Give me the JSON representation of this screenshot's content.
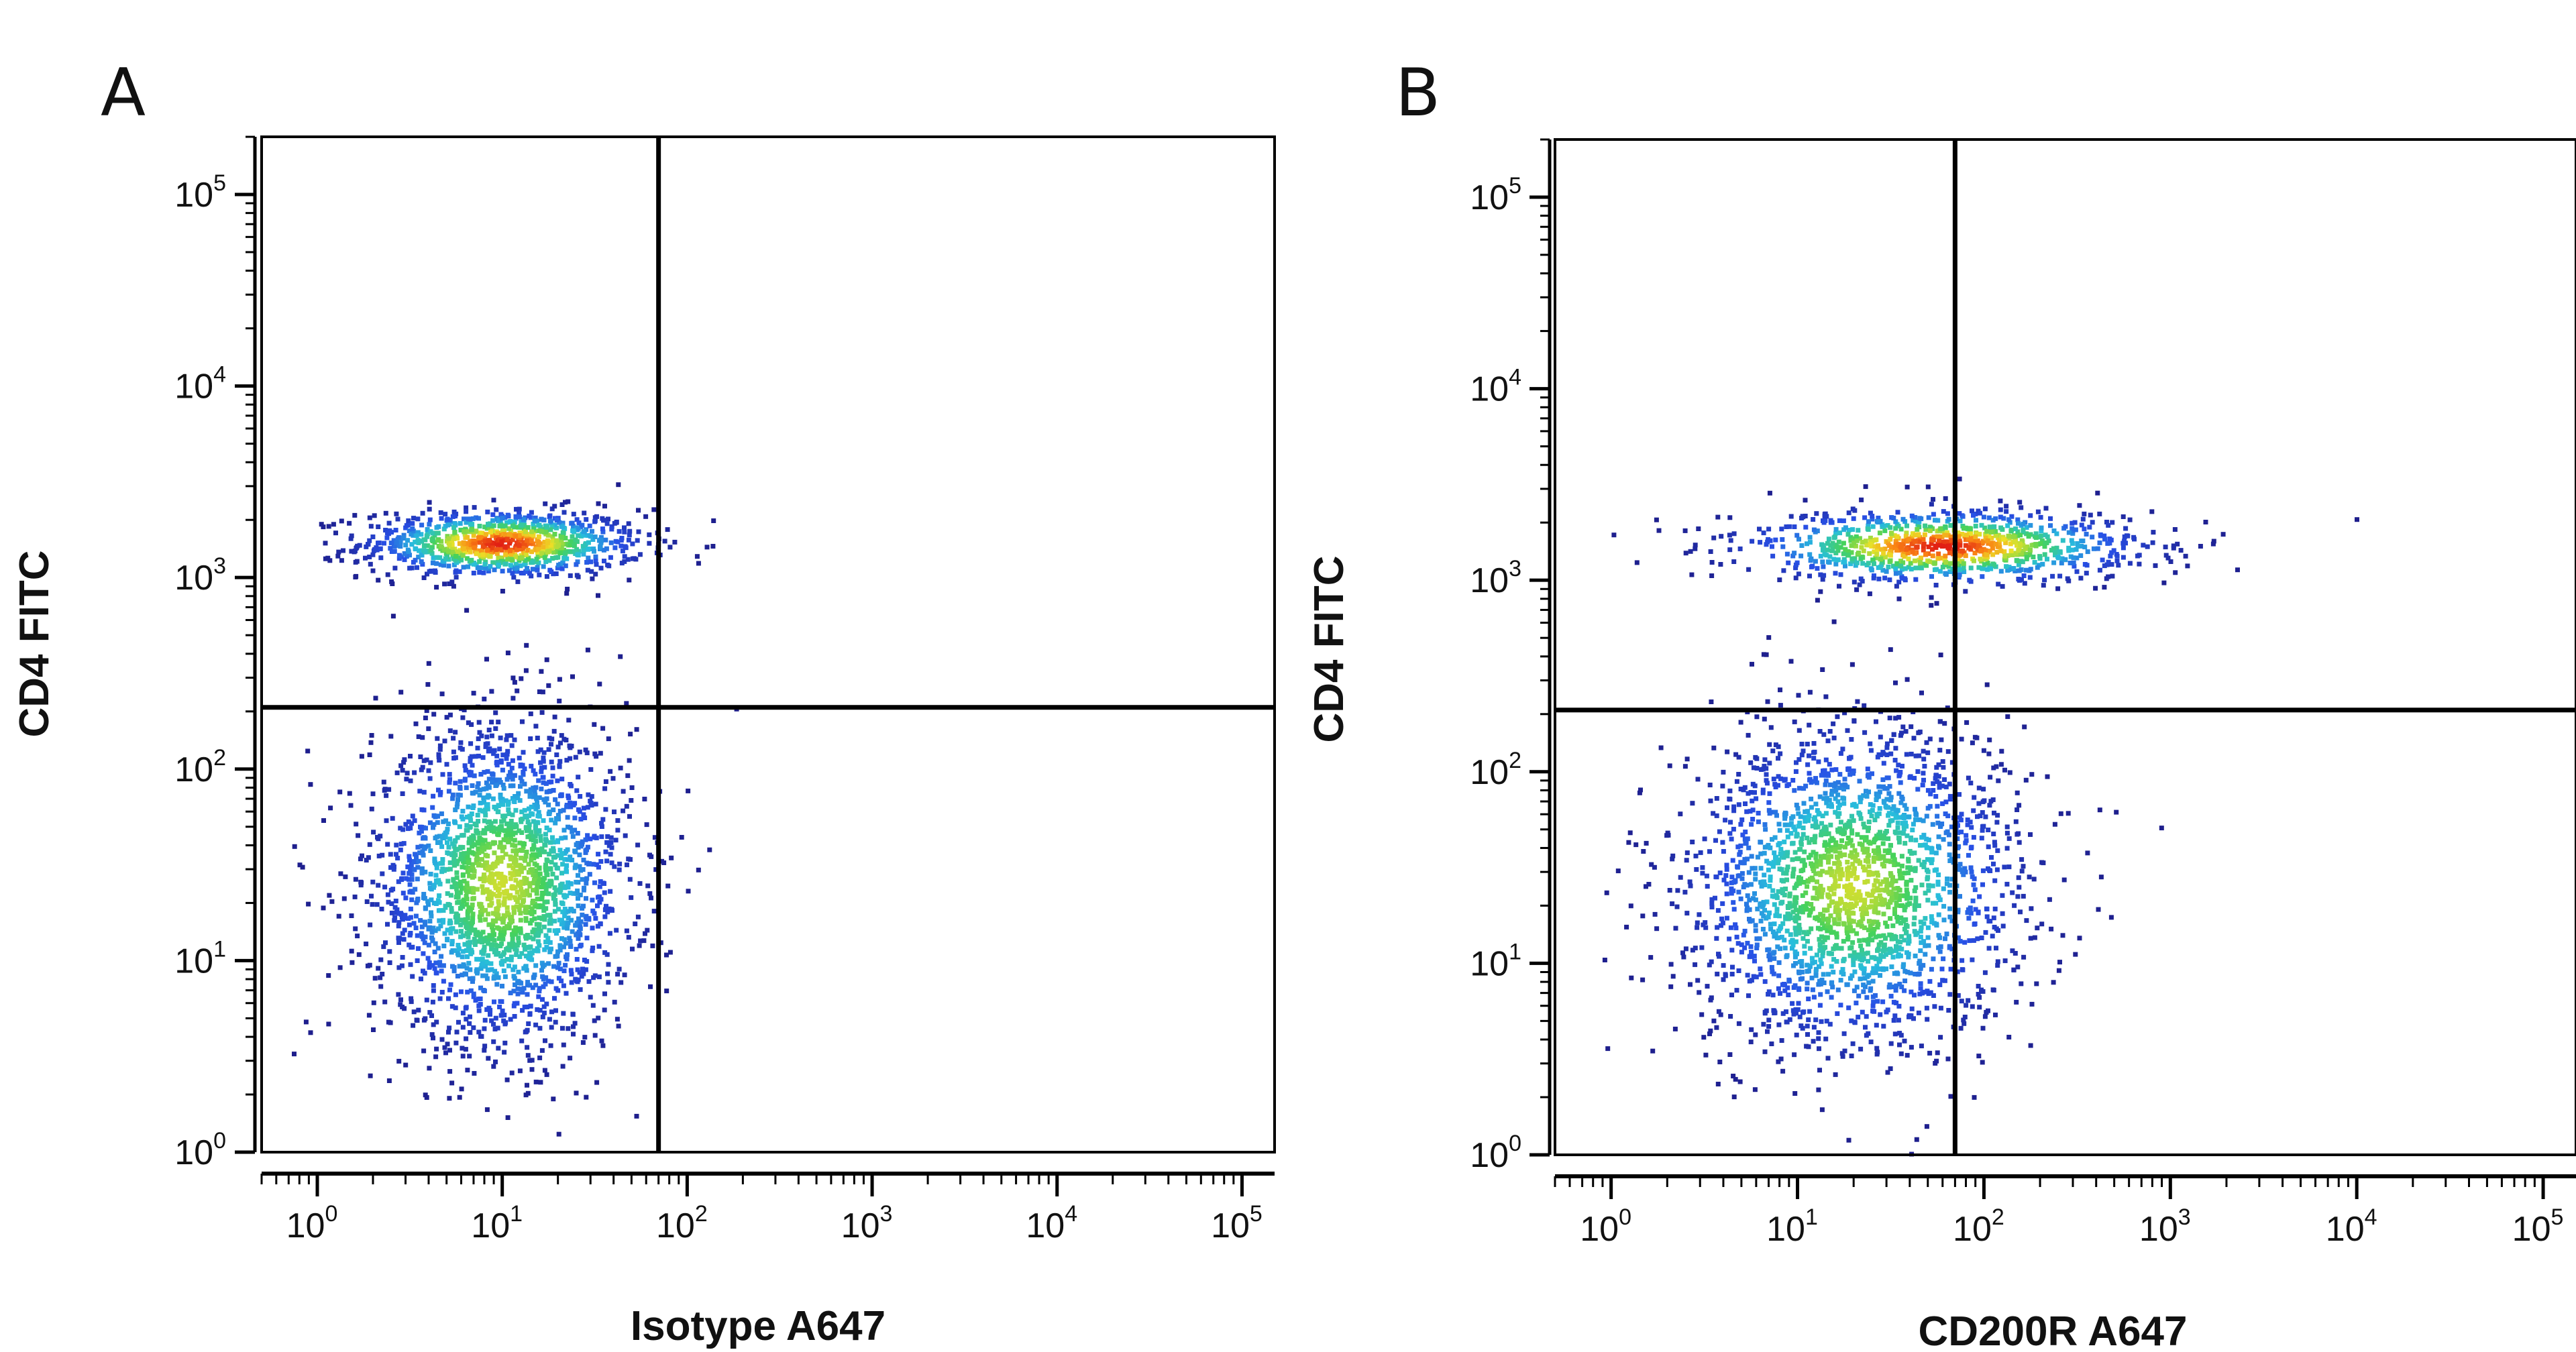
{
  "chart_data": [
    {
      "type": "scatter",
      "subtype": "flow-cytometry-density-dot-plot",
      "panel": "A",
      "xlabel": "Isotype A647",
      "ylabel": "CD4 FITC",
      "xscale": "log",
      "yscale": "log",
      "xlim": [
        0.5,
        150000
      ],
      "ylim": [
        1,
        200000
      ],
      "x_tick_exponents": [
        0,
        1,
        2,
        3,
        4,
        5
      ],
      "y_tick_exponents": [
        0,
        1,
        2,
        3,
        4,
        5
      ],
      "tick_base": "10",
      "gate": {
        "x": 70,
        "y": 210
      },
      "populations": [
        {
          "name": "CD4+",
          "x_center": 10,
          "y_center": 1500,
          "x_sd_decades": 0.38,
          "y_sd_decades": 0.09,
          "relative_size": 0.3
        },
        {
          "name": "CD4-",
          "x_center": 10,
          "y_center": 25,
          "x_sd_decades": 0.35,
          "y_sd_decades": 0.42,
          "relative_size": 0.7
        }
      ]
    },
    {
      "type": "scatter",
      "subtype": "flow-cytometry-density-dot-plot",
      "panel": "B",
      "xlabel": "CD200R A647",
      "ylabel": "CD4 FITC",
      "xscale": "log",
      "yscale": "log",
      "xlim": [
        0.5,
        150000
      ],
      "ylim": [
        1,
        200000
      ],
      "x_tick_exponents": [
        0,
        1,
        2,
        3,
        4,
        5
      ],
      "y_tick_exponents": [
        0,
        1,
        2,
        3,
        4,
        5
      ],
      "tick_base": "10",
      "gate": {
        "x": 70,
        "y": 210
      },
      "populations": [
        {
          "name": "CD4+",
          "x_center": 60,
          "y_center": 1500,
          "x_sd_decades": 0.55,
          "y_sd_decades": 0.1,
          "relative_size": 0.3
        },
        {
          "name": "CD4-",
          "x_center": 20,
          "y_center": 25,
          "x_sd_decades": 0.45,
          "y_sd_decades": 0.42,
          "relative_size": 0.7
        }
      ]
    }
  ]
}
